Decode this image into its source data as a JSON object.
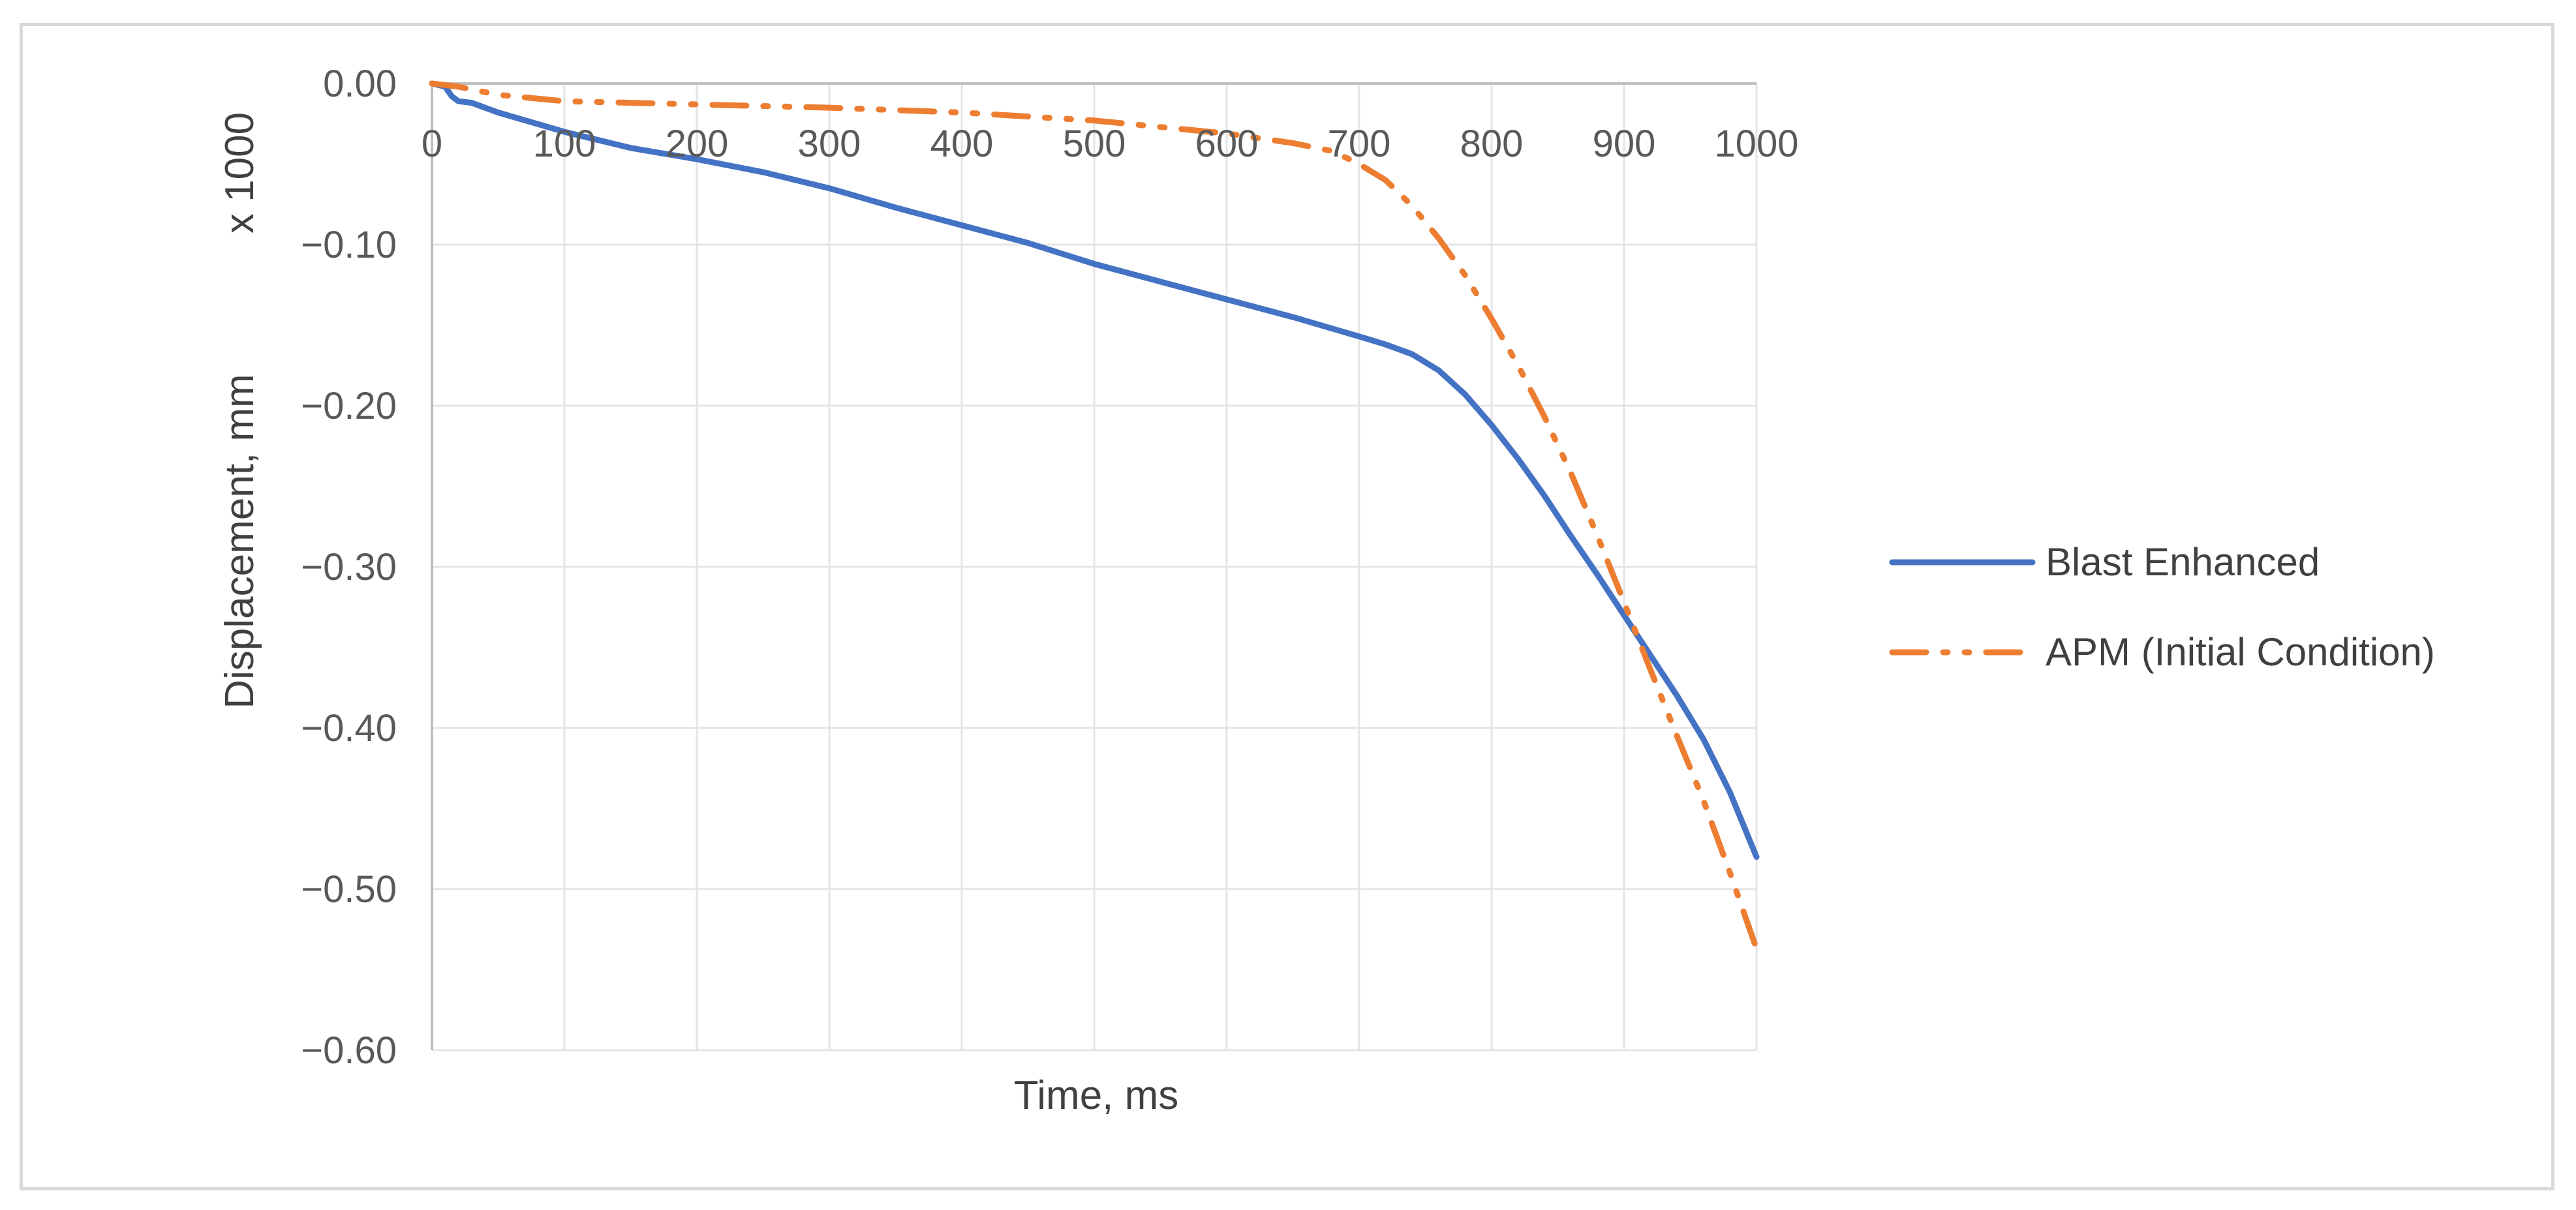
{
  "chart_data": {
    "type": "line",
    "title": "",
    "xlabel": "Time, ms",
    "ylabel": "Displacement, mm",
    "y_multiplier_label": "x 1000",
    "xlim": [
      0,
      1000
    ],
    "ylim": [
      -0.6,
      0
    ],
    "x_ticks": [
      "0",
      "100",
      "200",
      "300",
      "400",
      "500",
      "600",
      "700",
      "800",
      "900",
      "1000"
    ],
    "y_ticks": [
      "0.00",
      "−0.10",
      "−0.20",
      "−0.30",
      "−0.40",
      "−0.50",
      "−0.60"
    ],
    "x_tick_values": [
      0,
      100,
      200,
      300,
      400,
      500,
      600,
      700,
      800,
      900,
      1000
    ],
    "y_tick_values": [
      0,
      -0.1,
      -0.2,
      -0.3,
      -0.4,
      -0.5,
      -0.6
    ],
    "grid": true,
    "legend_position": "right",
    "series": [
      {
        "name": "Blast Enhanced",
        "color": "#4472c4",
        "style": "solid",
        "x": [
          0,
          10,
          15,
          20,
          30,
          50,
          100,
          150,
          200,
          250,
          300,
          350,
          400,
          450,
          500,
          550,
          600,
          650,
          700,
          720,
          740,
          760,
          780,
          800,
          820,
          840,
          860,
          880,
          900,
          920,
          940,
          960,
          980,
          1000
        ],
        "y": [
          0,
          -0.002,
          -0.008,
          -0.011,
          -0.012,
          -0.018,
          -0.03,
          -0.04,
          -0.047,
          -0.055,
          -0.065,
          -0.077,
          -0.088,
          -0.099,
          -0.112,
          -0.123,
          -0.134,
          -0.145,
          -0.157,
          -0.162,
          -0.168,
          -0.178,
          -0.193,
          -0.212,
          -0.233,
          -0.256,
          -0.281,
          -0.305,
          -0.33,
          -0.355,
          -0.38,
          -0.407,
          -0.44,
          -0.48
        ]
      },
      {
        "name": "APM (Initial Condition)",
        "color": "#ed7d31",
        "style": "dash-dot-dot",
        "x": [
          0,
          20,
          50,
          100,
          150,
          200,
          300,
          400,
          500,
          550,
          600,
          650,
          680,
          700,
          720,
          740,
          760,
          780,
          800,
          820,
          840,
          860,
          880,
          900,
          920,
          940,
          960,
          980,
          1000
        ],
        "y": [
          0,
          -0.002,
          -0.007,
          -0.011,
          -0.012,
          -0.013,
          -0.015,
          -0.018,
          -0.023,
          -0.027,
          -0.031,
          -0.037,
          -0.042,
          -0.05,
          -0.06,
          -0.076,
          -0.096,
          -0.119,
          -0.146,
          -0.175,
          -0.207,
          -0.242,
          -0.281,
          -0.322,
          -0.364,
          -0.405,
          -0.445,
          -0.49,
          -0.537
        ]
      }
    ]
  }
}
